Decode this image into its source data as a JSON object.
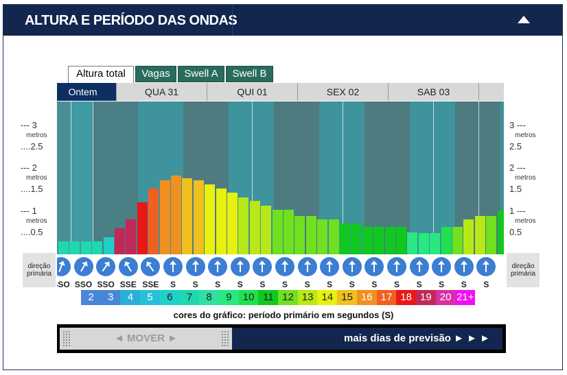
{
  "header": {
    "title": "ALTURA E PERÍODO DAS ONDAS",
    "collapse_icon": "triangle-up-icon"
  },
  "tabs": [
    {
      "label": "Altura total",
      "active": true
    },
    {
      "label": "Vagas",
      "active": false
    },
    {
      "label": "Swell A",
      "active": false
    },
    {
      "label": "Swell B",
      "active": false
    }
  ],
  "days": [
    "Ontem",
    "QUA 31",
    "QUI 01",
    "SEX 02",
    "SAB 03",
    ""
  ],
  "y_axis": {
    "ticks": [
      {
        "big": "3",
        "unit": "metros",
        "half": "2.5"
      },
      {
        "big": "2",
        "unit": "metros",
        "half": "1.5"
      },
      {
        "big": "1",
        "unit": "metros",
        "half": "0.5"
      }
    ]
  },
  "direction_label": "direção primária",
  "chart_data": {
    "type": "bar",
    "title": "Altura total",
    "ylabel": "metros",
    "ylim": [
      0,
      3.5
    ],
    "period_colors": {
      "2": "#4a86d8",
      "3": "#4a86d8",
      "4": "#28b0d8",
      "5": "#28c0d8",
      "6": "#20d0c8",
      "7": "#20d8b0",
      "8": "#30e0a0",
      "9": "#28e880",
      "10": "#20e050",
      "11": "#10c820",
      "12": "#70e020",
      "13": "#b8e818",
      "14": "#e8f010",
      "15": "#f0c020",
      "16": "#f09020",
      "17": "#f06020",
      "18": "#e81818",
      "19": "#c02858",
      "20": "#d830a0",
      "21+": "#f010f0"
    },
    "bars": [
      {
        "h": 0.3,
        "p": "7"
      },
      {
        "h": 0.3,
        "p": "7"
      },
      {
        "h": 0.3,
        "p": "7"
      },
      {
        "h": 0.3,
        "p": "7"
      },
      {
        "h": 0.4,
        "p": "6"
      },
      {
        "h": 0.6,
        "p": "19"
      },
      {
        "h": 0.8,
        "p": "19"
      },
      {
        "h": 1.2,
        "p": "18"
      },
      {
        "h": 1.5,
        "p": "17"
      },
      {
        "h": 1.7,
        "p": "16"
      },
      {
        "h": 1.8,
        "p": "16"
      },
      {
        "h": 1.75,
        "p": "15"
      },
      {
        "h": 1.7,
        "p": "15"
      },
      {
        "h": 1.6,
        "p": "14"
      },
      {
        "h": 1.5,
        "p": "14"
      },
      {
        "h": 1.42,
        "p": "14"
      },
      {
        "h": 1.3,
        "p": "13"
      },
      {
        "h": 1.22,
        "p": "13"
      },
      {
        "h": 1.12,
        "p": "13"
      },
      {
        "h": 1.02,
        "p": "12"
      },
      {
        "h": 1.02,
        "p": "12"
      },
      {
        "h": 0.88,
        "p": "12"
      },
      {
        "h": 0.88,
        "p": "12"
      },
      {
        "h": 0.8,
        "p": "12"
      },
      {
        "h": 0.8,
        "p": "12"
      },
      {
        "h": 0.7,
        "p": "11"
      },
      {
        "h": 0.7,
        "p": "11"
      },
      {
        "h": 0.62,
        "p": "11"
      },
      {
        "h": 0.62,
        "p": "11"
      },
      {
        "h": 0.62,
        "p": "11"
      },
      {
        "h": 0.62,
        "p": "11"
      },
      {
        "h": 0.5,
        "p": "9"
      },
      {
        "h": 0.48,
        "p": "9"
      },
      {
        "h": 0.48,
        "p": "9"
      },
      {
        "h": 0.62,
        "p": "10"
      },
      {
        "h": 0.62,
        "p": "12"
      },
      {
        "h": 0.8,
        "p": "13"
      },
      {
        "h": 0.88,
        "p": "13"
      },
      {
        "h": 0.88,
        "p": "12"
      },
      {
        "h": 1.0,
        "p": "11"
      },
      {
        "h": 1.1,
        "p": "11"
      }
    ],
    "directions": [
      "SSO",
      "SSO",
      "SSO",
      "SSE",
      "SSE",
      "S",
      "S",
      "S",
      "S",
      "S",
      "S",
      "S",
      "S",
      "S",
      "S",
      "S",
      "S",
      "S",
      "S",
      "S"
    ],
    "arrow_angles": [
      20,
      30,
      35,
      -30,
      -35,
      0,
      0,
      0,
      0,
      0,
      0,
      0,
      0,
      0,
      0,
      0,
      0,
      0,
      0,
      0
    ]
  },
  "legend": {
    "values": [
      "2",
      "3",
      "4",
      "5",
      "6",
      "7",
      "8",
      "9",
      "10",
      "11",
      "12",
      "13",
      "14",
      "15",
      "16",
      "17",
      "18",
      "19",
      "20",
      "21+"
    ],
    "caption": "cores do gráfico: período primário em segundos (S)"
  },
  "nav": {
    "mover": "◄ MOVER ►",
    "more_days": "mais dias de previsão ► ► ►"
  }
}
